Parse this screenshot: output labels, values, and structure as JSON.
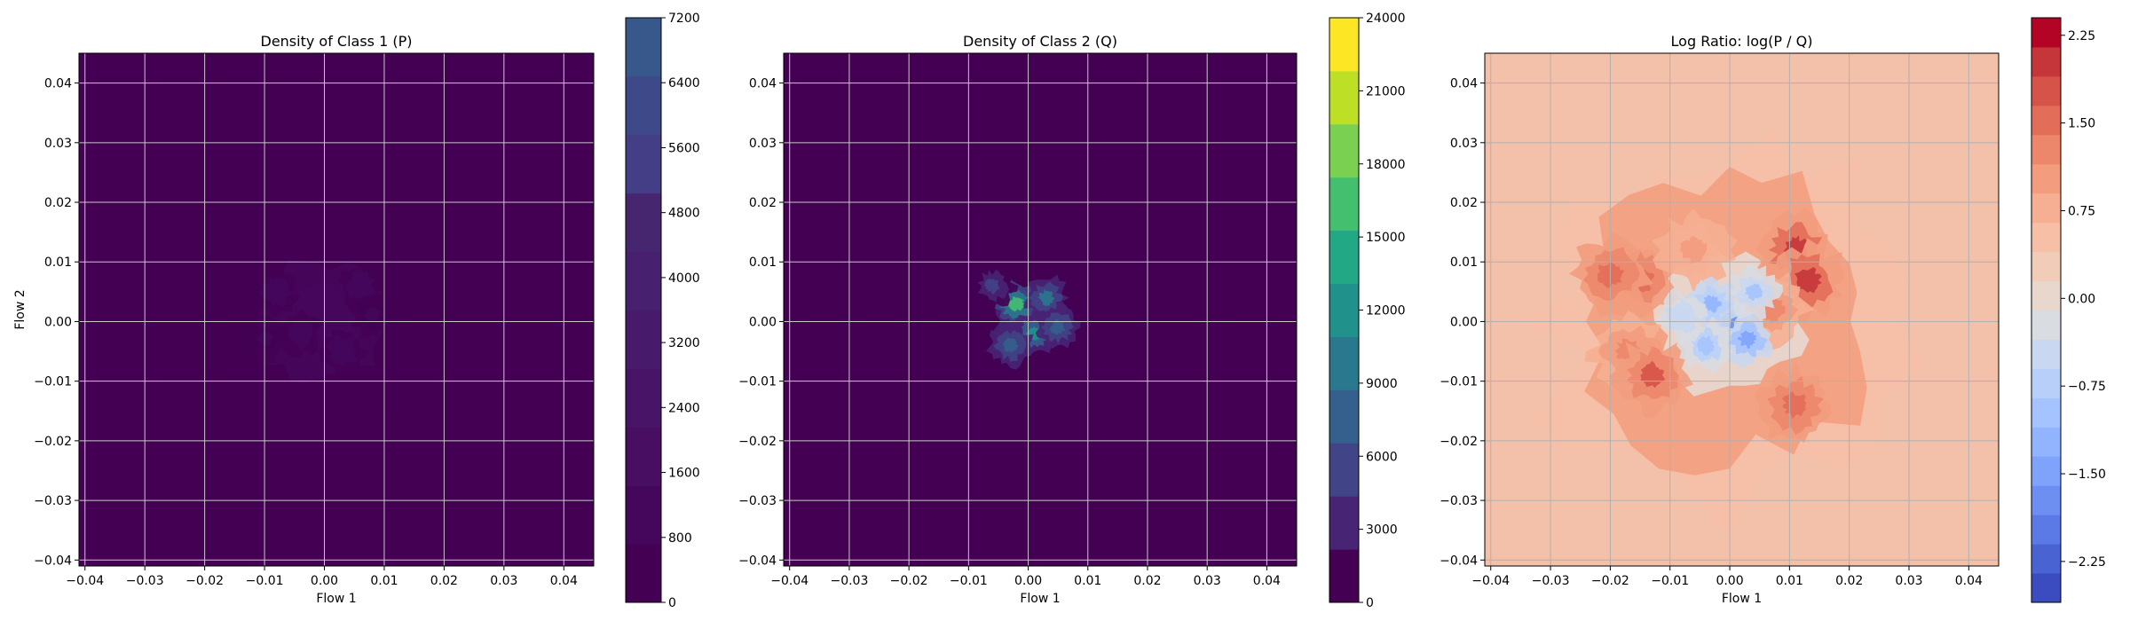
{
  "chart_data": [
    {
      "type": "heatmap",
      "style": "filled-contour",
      "title": "Density of Class 1 (P)",
      "xlabel": "Flow 1",
      "ylabel": "Flow 2",
      "xlim": [
        -0.041,
        0.045
      ],
      "ylim": [
        -0.041,
        0.045
      ],
      "xticks": [
        -0.04,
        -0.03,
        -0.02,
        -0.01,
        0.0,
        0.01,
        0.02,
        0.03,
        0.04
      ],
      "yticks": [
        -0.04,
        -0.03,
        -0.02,
        -0.01,
        0.0,
        0.01,
        0.02,
        0.03,
        0.04
      ],
      "xtick_labels": [
        "−0.04",
        "−0.03",
        "−0.02",
        "−0.01",
        "0.00",
        "0.01",
        "0.02",
        "0.03",
        "0.04"
      ],
      "ytick_labels": [
        "−0.04",
        "−0.03",
        "−0.02",
        "−0.01",
        "0.00",
        "0.01",
        "0.02",
        "0.03",
        "0.04"
      ],
      "grid": true,
      "colormap": "viridis",
      "colorbar": {
        "range": [
          0,
          7200
        ],
        "ticks": [
          0,
          800,
          1600,
          2400,
          3200,
          4000,
          4800,
          5600,
          6400,
          7200
        ],
        "tick_labels": [
          "0",
          "800",
          "1600",
          "2400",
          "3200",
          "4000",
          "4800",
          "5600",
          "6400",
          "7200"
        ],
        "colors": [
          "#440154",
          "#45075c",
          "#470e61",
          "#481467",
          "#481a6c",
          "#472070",
          "#46266f",
          "#433e85",
          "#3e4989",
          "#38588c"
        ]
      },
      "background_color": "#440154",
      "blob": {
        "center": [
          -0.001,
          0.0
        ],
        "radius": 0.017,
        "max_value": 1400
      },
      "hotspots": [
        {
          "x": -0.008,
          "y": 0.005,
          "value": 1300
        },
        {
          "x": 0.006,
          "y": 0.006,
          "value": 1250
        },
        {
          "x": -0.004,
          "y": -0.002,
          "value": 1200
        },
        {
          "x": 0.003,
          "y": -0.005,
          "value": 1100
        },
        {
          "x": -0.01,
          "y": -0.003,
          "value": 1000
        },
        {
          "x": 0.008,
          "y": 0.001,
          "value": 1050
        }
      ]
    },
    {
      "type": "heatmap",
      "style": "filled-contour",
      "title": "Density of Class 2 (Q)",
      "xlabel": "Flow 1",
      "ylabel": "",
      "xlim": [
        -0.041,
        0.045
      ],
      "ylim": [
        -0.041,
        0.045
      ],
      "xticks": [
        -0.04,
        -0.03,
        -0.02,
        -0.01,
        0.0,
        0.01,
        0.02,
        0.03,
        0.04
      ],
      "yticks": [
        -0.04,
        -0.03,
        -0.02,
        -0.01,
        0.0,
        0.01,
        0.02,
        0.03,
        0.04
      ],
      "xtick_labels": [
        "−0.04",
        "−0.03",
        "−0.02",
        "−0.01",
        "0.00",
        "0.01",
        "0.02",
        "0.03",
        "0.04"
      ],
      "ytick_labels": [
        "−0.04",
        "−0.03",
        "−0.02",
        "−0.01",
        "0.00",
        "0.01",
        "0.02",
        "0.03",
        "0.04"
      ],
      "grid": true,
      "colormap": "viridis",
      "colorbar": {
        "range": [
          0,
          24000
        ],
        "ticks": [
          0,
          3000,
          6000,
          9000,
          12000,
          15000,
          18000,
          21000,
          24000
        ],
        "tick_labels": [
          "0",
          "3000",
          "6000",
          "9000",
          "12000",
          "15000",
          "18000",
          "21000",
          "24000"
        ],
        "colors": [
          "#440154",
          "#482475",
          "#414487",
          "#355f8d",
          "#2a788e",
          "#21918c",
          "#22a884",
          "#44bf70",
          "#7ad151",
          "#bddf26",
          "#fde725"
        ]
      },
      "background_color": "#440154",
      "blob": {
        "center": [
          0.0,
          0.0
        ],
        "radius": 0.009,
        "max_value": 4000
      },
      "hotspots": [
        {
          "x": -0.002,
          "y": 0.003,
          "value": 15500
        },
        {
          "x": 0.001,
          "y": -0.002,
          "value": 13000
        },
        {
          "x": -0.003,
          "y": -0.004,
          "value": 8000
        },
        {
          "x": 0.003,
          "y": 0.004,
          "value": 9000
        },
        {
          "x": -0.006,
          "y": 0.006,
          "value": 6000
        },
        {
          "x": 0.005,
          "y": -0.001,
          "value": 7000
        }
      ]
    },
    {
      "type": "heatmap",
      "style": "filled-contour",
      "title": "Log Ratio: log(P / Q)",
      "xlabel": "Flow 1",
      "ylabel": "",
      "xlim": [
        -0.041,
        0.045
      ],
      "ylim": [
        -0.041,
        0.045
      ],
      "xticks": [
        -0.04,
        -0.03,
        -0.02,
        -0.01,
        0.0,
        0.01,
        0.02,
        0.03,
        0.04
      ],
      "yticks": [
        -0.04,
        -0.03,
        -0.02,
        -0.01,
        0.0,
        0.01,
        0.02,
        0.03,
        0.04
      ],
      "xtick_labels": [
        "−0.04",
        "−0.03",
        "−0.02",
        "−0.01",
        "0.00",
        "0.01",
        "0.02",
        "0.03",
        "0.04"
      ],
      "ytick_labels": [
        "−0.04",
        "−0.03",
        "−0.02",
        "−0.01",
        "0.00",
        "0.01",
        "0.02",
        "0.03",
        "0.04"
      ],
      "grid": true,
      "colormap": "coolwarm",
      "colorbar": {
        "range": [
          -2.6,
          2.4
        ],
        "ticks": [
          -2.25,
          -1.5,
          -0.75,
          0.0,
          0.75,
          1.5,
          2.25
        ],
        "tick_labels": [
          "−2.25",
          "−1.50",
          "−0.75",
          "0.00",
          "0.75",
          "1.50",
          "2.25"
        ],
        "colors": [
          "#3b4cc0",
          "#4a63d3",
          "#5b7ae5",
          "#6d8ff1",
          "#7fa3fb",
          "#92b4fe",
          "#a5c3fe",
          "#b8d0f9",
          "#c9d7f0",
          "#d9dce1",
          "#e7d7cd",
          "#f1cdb9",
          "#f6bfa6",
          "#f6af92",
          "#f39c7e",
          "#ec876b",
          "#e26e59",
          "#d55348",
          "#c4363a",
          "#b40426"
        ]
      },
      "background_color": "#f3c1a9",
      "baseline_value": 0.6,
      "hotspots": [
        {
          "x": 0.011,
          "y": 0.012,
          "value": 1.9
        },
        {
          "x": 0.013,
          "y": 0.007,
          "value": 2.1
        },
        {
          "x": -0.015,
          "y": 0.007,
          "value": 1.6
        },
        {
          "x": -0.02,
          "y": 0.008,
          "value": 1.5
        },
        {
          "x": -0.017,
          "y": -0.005,
          "value": 1.3
        },
        {
          "x": -0.013,
          "y": -0.009,
          "value": 1.7
        },
        {
          "x": 0.011,
          "y": -0.014,
          "value": 1.6
        },
        {
          "x": 0.007,
          "y": 0.002,
          "value": 1.2
        },
        {
          "x": -0.006,
          "y": 0.012,
          "value": 1.0
        }
      ],
      "coldspots": [
        {
          "x": 0.0,
          "y": 0.0,
          "value": -1.6
        },
        {
          "x": -0.003,
          "y": 0.003,
          "value": -1.2
        },
        {
          "x": 0.003,
          "y": -0.003,
          "value": -1.4
        },
        {
          "x": -0.004,
          "y": -0.004,
          "value": -1.0
        },
        {
          "x": 0.004,
          "y": 0.005,
          "value": -0.9
        },
        {
          "x": -0.008,
          "y": 0.001,
          "value": -0.6
        }
      ]
    }
  ]
}
